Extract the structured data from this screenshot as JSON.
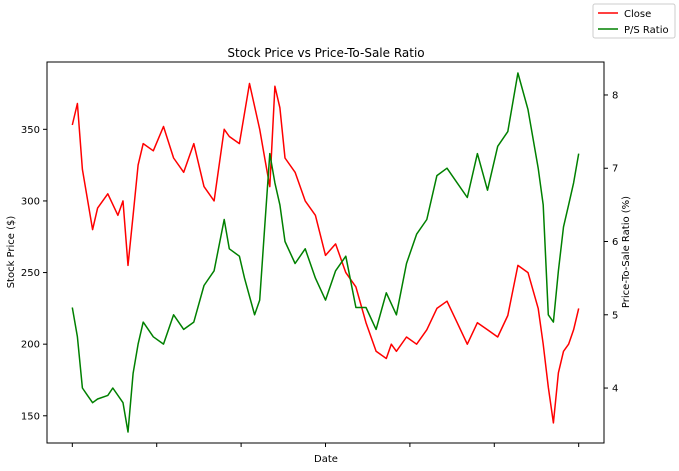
{
  "chart_data": {
    "type": "line",
    "title": "Stock Price vs Price-To-Sale Ratio",
    "xlabel": "Date",
    "ylabel_left": "Stock Price ($)",
    "ylabel_right": "Price-To-Sale Ratio (%)",
    "ylim_left": [
      131,
      397
    ],
    "ylim_right": [
      3.25,
      8.45
    ],
    "yticks_left": [
      150,
      200,
      250,
      300,
      350
    ],
    "yticks_right": [
      4,
      5,
      6,
      7,
      8
    ],
    "x_tick_count": 7,
    "xlim": [
      -0.05,
      1.05
    ],
    "grid": false,
    "legend_position": "upper-right-outside",
    "colors": {
      "close": "#ff0000",
      "ps_ratio": "#008000"
    },
    "series": [
      {
        "name": "Close",
        "axis": "left",
        "x": [
          0.0,
          0.01,
          0.02,
          0.04,
          0.05,
          0.07,
          0.09,
          0.1,
          0.11,
          0.12,
          0.13,
          0.14,
          0.16,
          0.18,
          0.2,
          0.22,
          0.24,
          0.26,
          0.28,
          0.3,
          0.31,
          0.33,
          0.35,
          0.37,
          0.38,
          0.39,
          0.4,
          0.41,
          0.42,
          0.44,
          0.46,
          0.48,
          0.5,
          0.52,
          0.54,
          0.56,
          0.58,
          0.6,
          0.62,
          0.63,
          0.64,
          0.66,
          0.68,
          0.7,
          0.72,
          0.74,
          0.76,
          0.78,
          0.8,
          0.82,
          0.84,
          0.86,
          0.88,
          0.9,
          0.92,
          0.93,
          0.94,
          0.95,
          0.96,
          0.97,
          0.98,
          0.99,
          1.0
        ],
        "values": [
          353,
          368,
          322,
          280,
          295,
          305,
          290,
          300,
          255,
          290,
          325,
          340,
          335,
          352,
          330,
          320,
          340,
          310,
          300,
          350,
          345,
          340,
          382,
          350,
          330,
          310,
          380,
          365,
          330,
          320,
          300,
          290,
          262,
          270,
          250,
          240,
          215,
          195,
          190,
          200,
          195,
          205,
          200,
          210,
          225,
          230,
          215,
          200,
          215,
          210,
          205,
          220,
          255,
          250,
          225,
          200,
          170,
          145,
          180,
          195,
          200,
          210,
          225
        ]
      },
      {
        "name": "P/S Ratio",
        "axis": "right",
        "x": [
          0.0,
          0.01,
          0.02,
          0.03,
          0.04,
          0.05,
          0.07,
          0.08,
          0.1,
          0.11,
          0.12,
          0.13,
          0.14,
          0.16,
          0.18,
          0.2,
          0.22,
          0.24,
          0.26,
          0.28,
          0.3,
          0.31,
          0.33,
          0.34,
          0.36,
          0.37,
          0.38,
          0.39,
          0.4,
          0.41,
          0.42,
          0.44,
          0.46,
          0.48,
          0.5,
          0.52,
          0.54,
          0.56,
          0.58,
          0.6,
          0.62,
          0.64,
          0.66,
          0.68,
          0.7,
          0.72,
          0.74,
          0.76,
          0.78,
          0.8,
          0.82,
          0.84,
          0.86,
          0.88,
          0.9,
          0.92,
          0.93,
          0.94,
          0.95,
          0.96,
          0.97,
          0.98,
          0.99,
          1.0
        ],
        "values": [
          5.1,
          4.7,
          4.0,
          3.9,
          3.8,
          3.85,
          3.9,
          4.0,
          3.8,
          3.4,
          4.2,
          4.6,
          4.9,
          4.7,
          4.6,
          5.0,
          4.8,
          4.9,
          5.4,
          5.6,
          6.3,
          5.9,
          5.8,
          5.5,
          5.0,
          5.2,
          6.2,
          7.2,
          6.8,
          6.5,
          6.0,
          5.7,
          5.9,
          5.5,
          5.2,
          5.6,
          5.8,
          5.1,
          5.1,
          4.8,
          5.3,
          5.0,
          5.7,
          6.1,
          6.3,
          6.9,
          7.0,
          6.8,
          6.6,
          7.2,
          6.7,
          7.3,
          7.5,
          8.3,
          7.8,
          7.0,
          6.5,
          5.0,
          4.9,
          5.6,
          6.2,
          6.5,
          6.8,
          7.2
        ]
      }
    ]
  }
}
